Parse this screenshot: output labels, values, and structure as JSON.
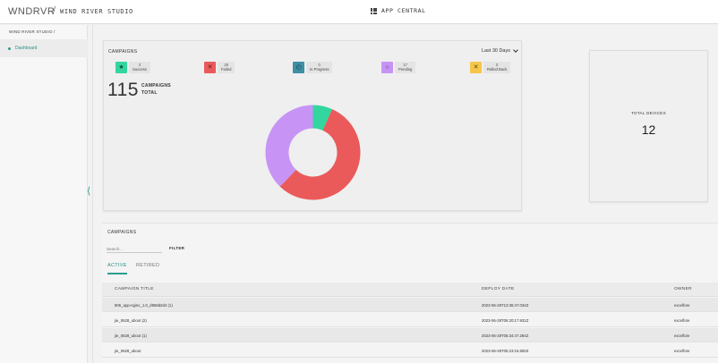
{
  "header": {
    "logo": "WNDRVR",
    "separator": "/",
    "studio": "WIND RIVER STUDIO",
    "app_central": "APP CENTRAL",
    "app_icon": "grid-icon"
  },
  "sidebar": {
    "breadcrumb": "WIND RIVER STUDIO  /",
    "items": [
      {
        "label": "Dashboard"
      }
    ],
    "collapse_icon": "chevron-left-icon"
  },
  "campaigns_summary": {
    "title": "CAMPAIGNS",
    "period": "Last 30 Days",
    "stats": [
      {
        "label": "Success",
        "count": "3",
        "icon": "star-icon",
        "color": "#33d69f"
      },
      {
        "label": "Failed",
        "count": "25",
        "icon": "x-icon",
        "color": "#ea5a5a"
      },
      {
        "label": "In Progress",
        "count": "0",
        "icon": "progress-icon",
        "color": "#3f8fa6"
      },
      {
        "label": "Pending",
        "count": "17",
        "icon": "circle-icon",
        "color": "#c794f5"
      },
      {
        "label": "Rolled Back",
        "count": "0",
        "icon": "x-icon",
        "color": "#f5c64a"
      }
    ],
    "total_number": "115",
    "total_label_1": "CAMPAIGNS",
    "total_label_2": "TOTAL"
  },
  "chart_data": {
    "type": "pie",
    "donut": true,
    "categories": [
      "Success",
      "Failed",
      "In Progress",
      "Pending",
      "Rolled Back"
    ],
    "values": [
      3,
      25,
      0,
      17,
      0
    ],
    "colors": [
      "#33d69f",
      "#ea5a5a",
      "#3f8fa6",
      "#c794f5",
      "#f5c64a"
    ]
  },
  "devices": {
    "label": "TOTAL DEVICES",
    "value": "12"
  },
  "campaigns_table": {
    "title": "CAMPAIGNS",
    "search_placeholder": "Search...",
    "filter_label": "FILTER",
    "tabs": [
      {
        "label": "ACTIVE"
      },
      {
        "label": "RETIRED"
      }
    ],
    "columns": [
      "CAMPAIGN TITLE",
      "DEPLOY DATE",
      "OWNER"
    ],
    "rows": [
      {
        "title": "806_app-nginx_1.0_d958d2d4 (1)",
        "date": "2023-06-28T13:36:47.034Z",
        "owner": "excelfore"
      },
      {
        "title": "jie_0628_uboot (2)",
        "date": "2023-06-28T06:20:17.931Z",
        "owner": "excelfore"
      },
      {
        "title": "jie_0628_uboot (1)",
        "date": "2023-06-28T05:34:47.284Z",
        "owner": "excelfore"
      },
      {
        "title": "jie_0628_uboot",
        "date": "2023-06-28T05:23:15.900Z",
        "owner": "excelfore"
      }
    ]
  }
}
